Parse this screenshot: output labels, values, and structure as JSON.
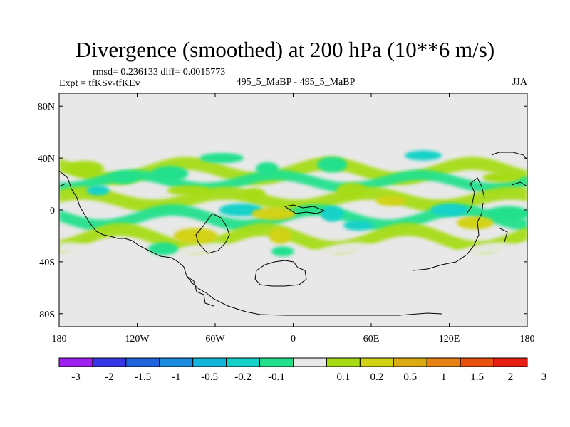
{
  "header": {
    "title": "Divergence (smoothed) at 200 hPa (10**6 m/s)",
    "stats": "rmsd= 0.236133 diff= 0.0015773",
    "experiment": "Expt = tfKSv-tfKEv",
    "cases": "495_5_MaBP - 495_5_MaBP",
    "season": "JJA"
  },
  "chart_data": {
    "type": "heatmap",
    "title": "Divergence (smoothed) at 200 hPa (10**6 m/s)",
    "projection": "cylindrical equidistant",
    "xlabel": "",
    "ylabel": "",
    "xlim": [
      -180,
      180
    ],
    "ylim": [
      -90,
      90
    ],
    "x_ticks": [
      {
        "value": -180,
        "label": "180"
      },
      {
        "value": -120,
        "label": "120W"
      },
      {
        "value": -60,
        "label": "60W"
      },
      {
        "value": 0,
        "label": "0"
      },
      {
        "value": 60,
        "label": "60E"
      },
      {
        "value": 120,
        "label": "120E"
      },
      {
        "value": 180,
        "label": "180"
      }
    ],
    "y_ticks": [
      {
        "value": 80,
        "label": "80N"
      },
      {
        "value": 40,
        "label": "40N"
      },
      {
        "value": 0,
        "label": "0"
      },
      {
        "value": -40,
        "label": "40S"
      },
      {
        "value": -80,
        "label": "80S"
      }
    ],
    "colorbar": {
      "levels": [
        "-3",
        "-2",
        "-1.5",
        "-1",
        "-0.5",
        "-0.2",
        "-0.1",
        "0.1",
        "0.2",
        "0.5",
        "1",
        "1.5",
        "2",
        "3"
      ],
      "colors": [
        "#a020f0",
        "#3636e6",
        "#1e64dc",
        "#1a8ce0",
        "#13b4dc",
        "#14d2c8",
        "#22e08c",
        "#e8e8e8",
        "#a6dc14",
        "#d2d214",
        "#dcaa14",
        "#e88214",
        "#e8500f",
        "#e81e14"
      ]
    },
    "features": [
      {
        "lon": -150,
        "lat": 15,
        "value": -0.5
      },
      {
        "lon": -130,
        "lat": 25,
        "value": -0.2
      },
      {
        "lon": -95,
        "lat": 28,
        "value": -0.2
      },
      {
        "lon": -55,
        "lat": 40,
        "value": -0.2
      },
      {
        "lon": -20,
        "lat": 32,
        "value": -0.2
      },
      {
        "lon": 30,
        "lat": 35,
        "value": -0.2
      },
      {
        "lon": 100,
        "lat": 42,
        "value": -0.5
      },
      {
        "lon": -40,
        "lat": 0,
        "value": -0.5
      },
      {
        "lon": 30,
        "lat": -3,
        "value": -0.5
      },
      {
        "lon": 50,
        "lat": -12,
        "value": -0.5
      },
      {
        "lon": 120,
        "lat": 0,
        "value": -0.5
      },
      {
        "lon": 165,
        "lat": -3,
        "value": -0.2
      },
      {
        "lon": -8,
        "lat": -32,
        "value": -0.2
      },
      {
        "lon": -100,
        "lat": -30,
        "value": -0.2
      },
      {
        "lon": -160,
        "lat": 32,
        "value": 0.2
      },
      {
        "lon": -80,
        "lat": 15,
        "value": 0.2
      },
      {
        "lon": -30,
        "lat": 12,
        "value": 0.2
      },
      {
        "lon": 45,
        "lat": 15,
        "value": 0.2
      },
      {
        "lon": 160,
        "lat": 25,
        "value": 0.2
      },
      {
        "lon": -15,
        "lat": -3,
        "value": 0.5
      },
      {
        "lon": -10,
        "lat": -20,
        "value": 0.5
      },
      {
        "lon": 75,
        "lat": 7,
        "value": 0.5
      },
      {
        "lon": 140,
        "lat": -10,
        "value": 0.5
      },
      {
        "lon": -75,
        "lat": -20,
        "value": 0.5
      }
    ]
  }
}
